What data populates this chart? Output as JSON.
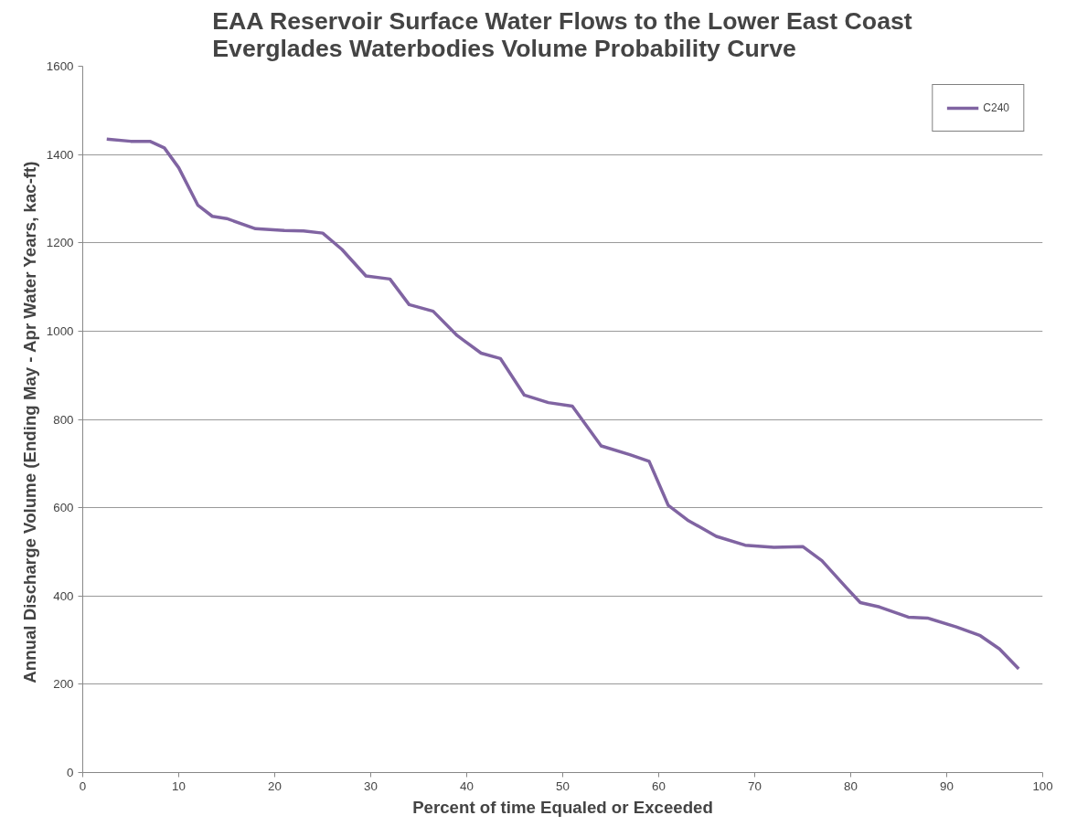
{
  "chart_data": {
    "type": "line",
    "title": "EAA Reservoir Surface Water Flows to the Lower East Coast\nEverglades Waterbodies Volume Probability Curve",
    "xlabel": "Percent of time Equaled or Exceeded",
    "ylabel": "Annual Discharge Volume (Ending May - Apr Water Years,  kac-ft)",
    "x": [
      2.5,
      5,
      7,
      8.5,
      10,
      12,
      13.5,
      15,
      18,
      21,
      23,
      25,
      27,
      29.5,
      32,
      34,
      36.5,
      39,
      41.5,
      43.5,
      46,
      48.5,
      51,
      54,
      57,
      59,
      61,
      63,
      66,
      69,
      72,
      75,
      77,
      79.5,
      81,
      83,
      86,
      88,
      91,
      93.5,
      95.5,
      97.5
    ],
    "series": [
      {
        "name": "C240",
        "color": "#8064a2",
        "values": [
          1435,
          1430,
          1430,
          1415,
          1370,
          1285,
          1260,
          1255,
          1232,
          1228,
          1227,
          1222,
          1185,
          1125,
          1118,
          1060,
          1045,
          990,
          950,
          938,
          855,
          838,
          830,
          740,
          720,
          705,
          605,
          572,
          535,
          515,
          510,
          512,
          480,
          420,
          385,
          375,
          352,
          350,
          330,
          310,
          280,
          235
        ]
      }
    ],
    "xlim": [
      0,
      100
    ],
    "xticks": [
      0,
      10,
      20,
      30,
      40,
      50,
      60,
      70,
      80,
      90,
      100
    ],
    "ylim": [
      0,
      1600
    ],
    "yticks": [
      0,
      200,
      400,
      600,
      800,
      1000,
      1200,
      1400,
      1600
    ],
    "grid": "y",
    "legend": "top right",
    "marker": "none",
    "line_style": "solid"
  }
}
